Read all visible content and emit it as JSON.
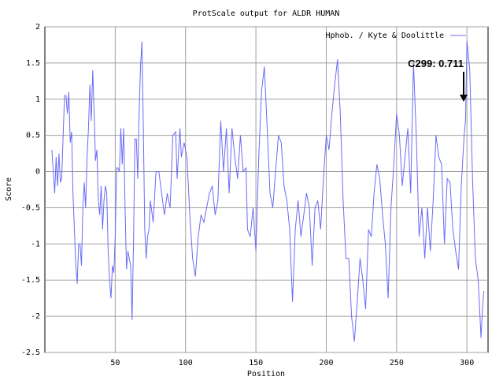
{
  "chart_data": {
    "type": "line",
    "title": "ProtScale output for ALDR HUMAN",
    "x_label": "Position",
    "y_label": "Score",
    "annotation": "C299: 0.711",
    "legend_position": "upper right",
    "grid": true,
    "xlim": [
      0,
      315
    ],
    "ylim": [
      -2.5,
      2
    ],
    "xticks": [
      50,
      100,
      150,
      200,
      250,
      300
    ],
    "yticks": [
      -2.5,
      -2,
      -1.5,
      -1,
      -0.5,
      0,
      0.5,
      1,
      1.5,
      2
    ],
    "x": [
      5,
      6,
      7,
      8,
      9,
      10,
      11,
      12,
      13,
      14,
      15,
      16,
      17,
      18,
      19,
      20,
      21,
      22,
      23,
      24,
      25,
      26,
      27,
      28,
      29,
      30,
      31,
      32,
      33,
      34,
      35,
      36,
      37,
      38,
      39,
      40,
      41,
      42,
      43,
      44,
      45,
      46,
      47,
      48,
      49,
      50,
      51,
      52,
      53,
      54,
      55,
      56,
      57,
      58,
      59,
      60,
      61,
      62,
      63,
      64,
      65,
      66,
      67,
      68,
      69,
      70,
      71,
      72,
      73,
      74,
      75,
      77,
      79,
      81,
      83,
      85,
      87,
      89,
      91,
      93,
      94,
      96,
      97,
      99,
      101,
      103,
      105,
      107,
      109,
      111,
      113,
      115,
      117,
      119,
      121,
      123,
      125,
      127,
      129,
      131,
      133,
      135,
      137,
      139,
      141,
      143,
      144,
      146,
      148,
      150,
      152,
      154,
      156,
      158,
      160,
      162,
      164,
      166,
      168,
      170,
      172,
      174,
      176,
      178,
      180,
      182,
      184,
      186,
      188,
      190,
      192,
      194,
      196,
      198,
      200,
      202,
      204,
      206,
      208,
      210,
      212,
      214,
      216,
      218,
      220,
      222,
      224,
      226,
      228,
      230,
      232,
      234,
      236,
      238,
      240,
      242,
      244,
      246,
      248,
      250,
      252,
      254,
      256,
      258,
      260,
      262,
      264,
      266,
      268,
      270,
      272,
      274,
      276,
      278,
      280,
      282,
      284,
      286,
      288,
      290,
      292,
      294,
      296,
      298,
      299,
      300,
      302,
      304,
      306,
      308,
      310,
      311,
      312
    ],
    "series": [
      {
        "name": "Hphob. / Kyte & Doolittle",
        "color": "#6b6bf5",
        "values": [
          0.3,
          0.0,
          -0.3,
          0.2,
          -0.2,
          0.25,
          -0.15,
          -0.1,
          0.5,
          1.05,
          1.05,
          0.8,
          1.1,
          0.4,
          0.55,
          -0.3,
          -0.8,
          -1.3,
          -1.55,
          -1.0,
          -1.0,
          -1.3,
          -0.5,
          -0.15,
          -0.5,
          0.2,
          0.6,
          1.2,
          0.7,
          1.4,
          0.8,
          0.15,
          0.3,
          -0.4,
          -0.6,
          -0.2,
          -0.8,
          -0.4,
          -0.2,
          -0.3,
          -1.1,
          -1.5,
          -1.75,
          -1.3,
          -1.4,
          -0.9,
          0.05,
          0.05,
          0.0,
          0.6,
          0.1,
          0.6,
          -0.5,
          -1.35,
          -1.1,
          -1.2,
          -1.3,
          -2.05,
          -1.0,
          0.45,
          0.45,
          -0.1,
          0.8,
          1.45,
          1.8,
          0.6,
          -0.8,
          -1.2,
          -0.9,
          -0.8,
          -0.4,
          -0.7,
          0.0,
          0.0,
          -0.3,
          -0.6,
          -0.3,
          -0.5,
          0.5,
          0.55,
          -0.1,
          0.6,
          0.2,
          0.4,
          0.2,
          -0.6,
          -1.2,
          -1.45,
          -0.9,
          -0.6,
          -0.7,
          -0.5,
          -0.3,
          -0.2,
          -0.6,
          -0.4,
          0.7,
          0.0,
          0.6,
          -0.3,
          0.6,
          0.2,
          -0.1,
          0.5,
          0.0,
          0.05,
          -0.8,
          -0.9,
          -0.5,
          -1.1,
          0.2,
          1.1,
          1.45,
          0.6,
          -0.3,
          -0.5,
          0.0,
          0.5,
          0.4,
          -0.2,
          -0.4,
          -0.8,
          -1.8,
          -0.8,
          -0.4,
          -0.9,
          -0.6,
          -0.3,
          -0.5,
          -1.3,
          -0.5,
          -0.4,
          -0.8,
          -0.1,
          0.5,
          0.3,
          0.8,
          1.2,
          1.55,
          0.8,
          -0.4,
          -1.2,
          -1.2,
          -2.0,
          -2.35,
          -1.8,
          -1.2,
          -1.5,
          -1.9,
          -0.8,
          -0.9,
          -0.3,
          0.1,
          -0.1,
          -0.6,
          -1.0,
          -1.75,
          -0.5,
          0.1,
          0.8,
          0.5,
          -0.2,
          0.2,
          0.6,
          -0.3,
          1.5,
          0.5,
          -0.9,
          -0.5,
          -1.2,
          -0.5,
          -1.1,
          -0.4,
          0.5,
          0.2,
          0.1,
          -1.0,
          -0.1,
          -0.15,
          -0.8,
          -1.1,
          -1.35,
          -0.2,
          0.5,
          0.711,
          1.8,
          1.4,
          -0.1,
          -1.2,
          -1.5,
          -2.3,
          -1.9,
          -1.65
        ]
      }
    ]
  }
}
